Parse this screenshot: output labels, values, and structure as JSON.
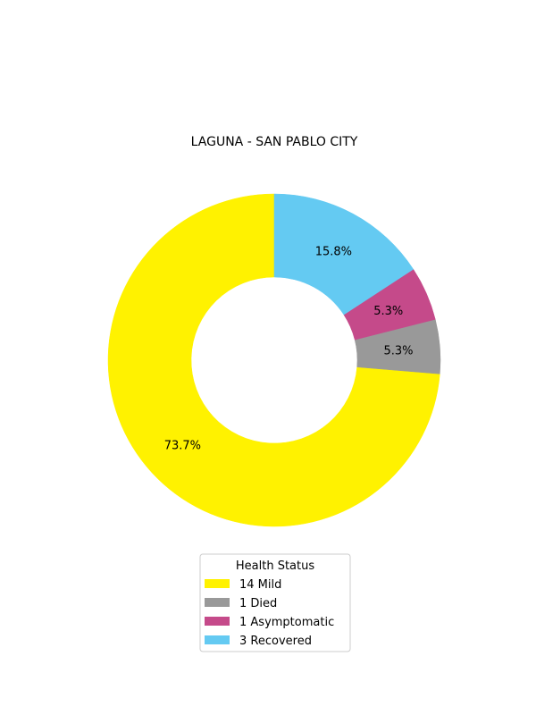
{
  "chart_data": {
    "type": "pie",
    "style": "donut",
    "title": "LAGUNA - SAN PABLO CITY",
    "start_angle_deg": 90,
    "direction": "counterclockwise",
    "hole_ratio": 0.5,
    "series": [
      {
        "key": "mild",
        "value": 14,
        "count_label": "14",
        "status_label": "Mild",
        "percent_label": "73.7%",
        "color": "#FFF200"
      },
      {
        "key": "died",
        "value": 1,
        "count_label": "1",
        "status_label": "Died",
        "percent_label": "5.3%",
        "color": "#999999"
      },
      {
        "key": "asymptomatic",
        "value": 1,
        "count_label": "1",
        "status_label": "Asymptomatic",
        "percent_label": "5.3%",
        "color": "#C54A8A"
      },
      {
        "key": "recovered",
        "value": 3,
        "count_label": "3",
        "status_label": "Recovered",
        "percent_label": "15.8%",
        "color": "#64CAF2"
      }
    ],
    "legend": {
      "title": "Health Status",
      "placement": "bottom-center"
    }
  }
}
